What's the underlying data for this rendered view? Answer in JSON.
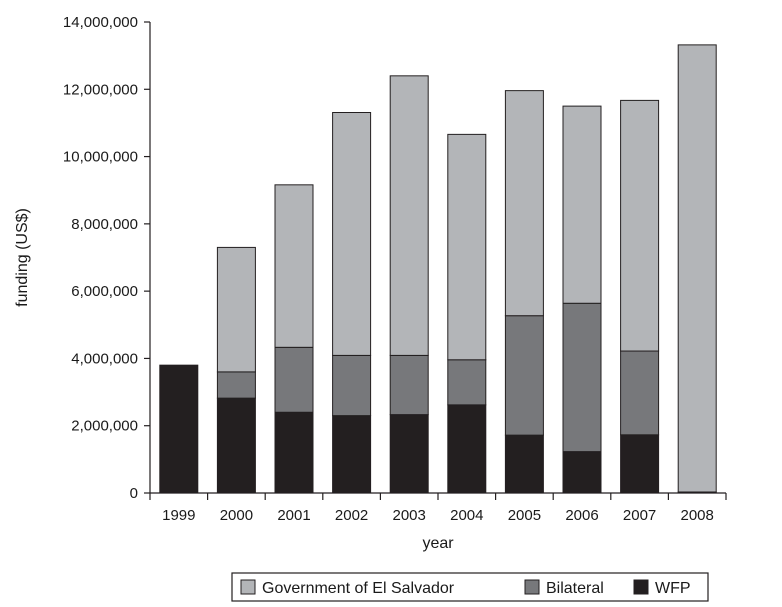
{
  "chart_data": {
    "type": "bar",
    "stacked": true,
    "categories": [
      "1999",
      "2000",
      "2001",
      "2002",
      "2003",
      "2004",
      "2005",
      "2006",
      "2007",
      "2008"
    ],
    "series": [
      {
        "name": "WFP",
        "color": "#231f20",
        "values": [
          3800000,
          2820000,
          2400000,
          2300000,
          2330000,
          2620000,
          1720000,
          1230000,
          1730000,
          30000
        ]
      },
      {
        "name": "Bilateral",
        "color": "#77787b",
        "values": [
          0,
          780000,
          1930000,
          1790000,
          1760000,
          1340000,
          3550000,
          4410000,
          2490000,
          0
        ]
      },
      {
        "name": "Government of El Salvador",
        "color": "#b3b5b8",
        "values": [
          0,
          3700000,
          4830000,
          7220000,
          8310000,
          6700000,
          6690000,
          5860000,
          7450000,
          13290000
        ]
      }
    ],
    "legend_order": [
      "Government of El Salvador",
      "Bilateral",
      "WFP"
    ],
    "xlabel": "year",
    "ylabel": "funding (US$)",
    "ylim": [
      0,
      14000000
    ],
    "y_ticks": [
      0,
      2000000,
      4000000,
      6000000,
      8000000,
      10000000,
      12000000,
      14000000
    ],
    "y_tick_labels": [
      "0",
      "2,000,000",
      "4,000,000",
      "6,000,000",
      "8,000,000",
      "10,000,000",
      "12,000,000",
      "14,000,000"
    ],
    "legend_position": "bottom",
    "grid": false
  }
}
